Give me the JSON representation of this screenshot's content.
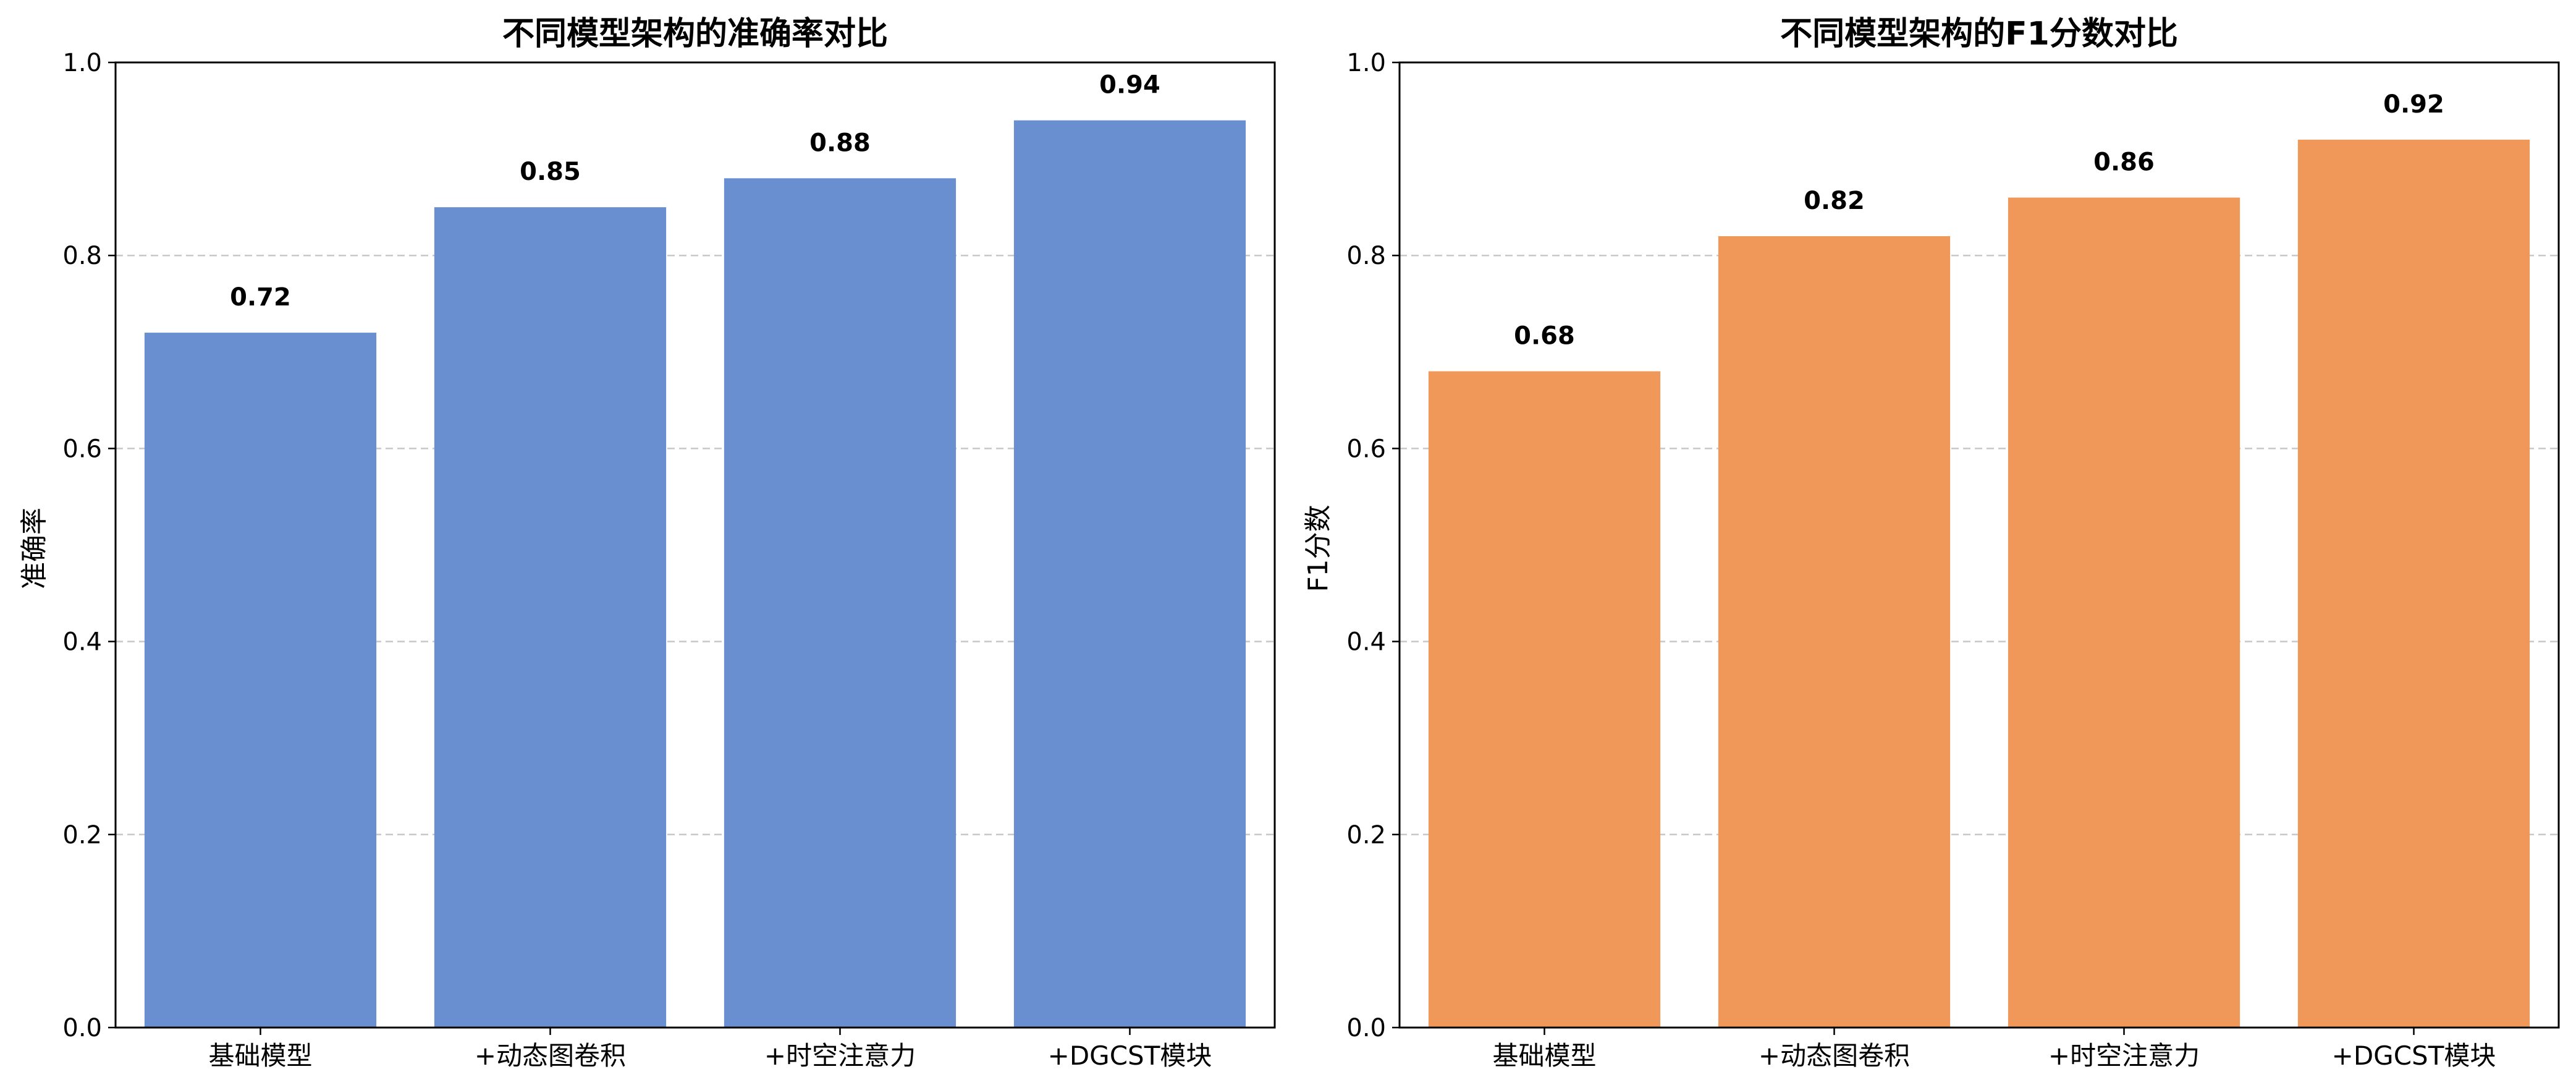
{
  "chart_data": [
    {
      "type": "bar",
      "title": "不同模型架构的准确率对比",
      "xlabel": "",
      "ylabel": "准确率",
      "categories": [
        "基础模型",
        "+动态图卷积",
        "+时空注意力",
        "+DGCST模块"
      ],
      "values": [
        0.72,
        0.85,
        0.88,
        0.94
      ],
      "value_labels": [
        "0.72",
        "0.85",
        "0.88",
        "0.94"
      ],
      "ylim": [
        0,
        1.0
      ],
      "yticks": [
        "0.0",
        "0.2",
        "0.4",
        "0.6",
        "0.8",
        "1.0"
      ],
      "grid": "y-dashed",
      "bar_color": "#6a8fd0"
    },
    {
      "type": "bar",
      "title": "不同模型架构的F1分数对比",
      "xlabel": "",
      "ylabel": "F1分数",
      "categories": [
        "基础模型",
        "+动态图卷积",
        "+时空注意力",
        "+DGCST模块"
      ],
      "values": [
        0.68,
        0.82,
        0.86,
        0.92
      ],
      "value_labels": [
        "0.68",
        "0.82",
        "0.86",
        "0.92"
      ],
      "ylim": [
        0,
        1.0
      ],
      "yticks": [
        "0.0",
        "0.2",
        "0.4",
        "0.6",
        "0.8",
        "1.0"
      ],
      "grid": "y-dashed",
      "bar_color": "#f0985a"
    }
  ]
}
